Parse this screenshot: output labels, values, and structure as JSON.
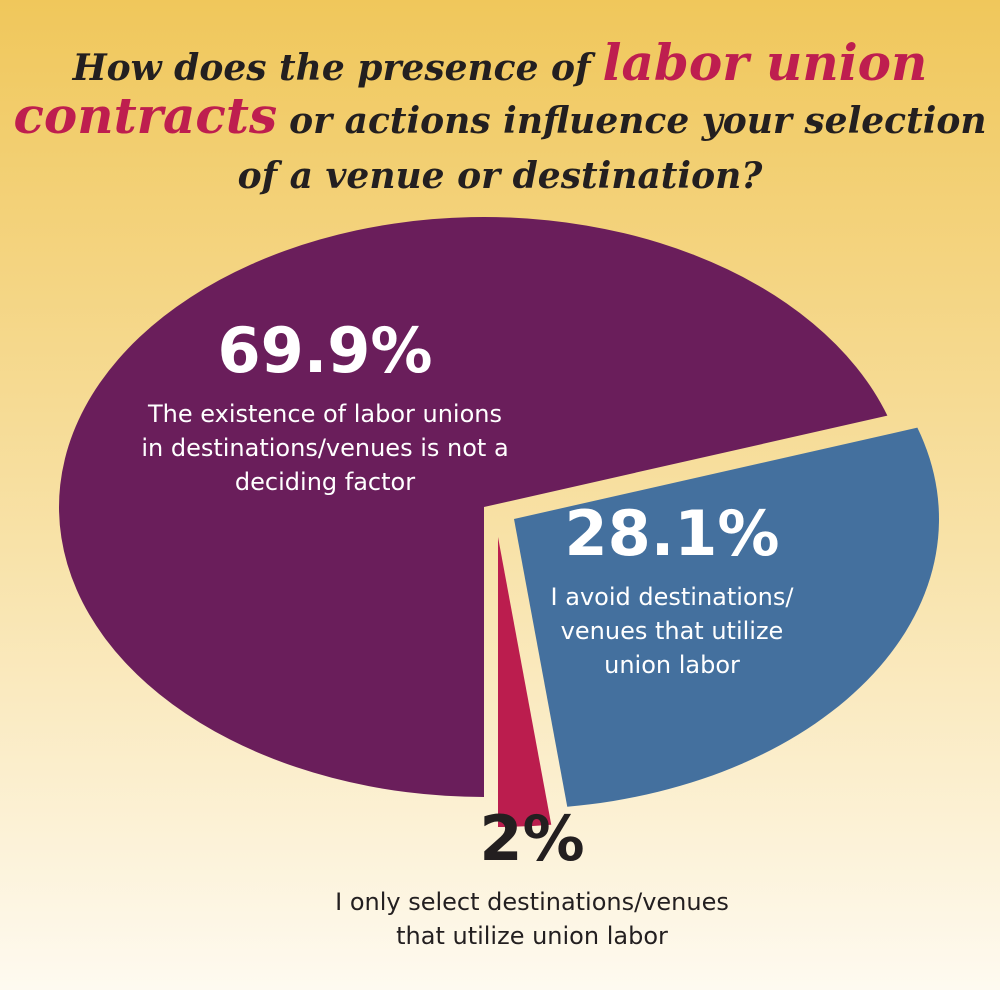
{
  "chart_data": {
    "type": "pie",
    "title": [
      [
        {
          "text": "How does the presence of",
          "color": "#231f20"
        },
        {
          "text": "labor union",
          "color": "#be1e4f"
        }
      ],
      [
        {
          "text": "contracts",
          "color": "#be1e4f"
        },
        {
          "text": "or actions influence your selection",
          "color": "#231f20"
        }
      ],
      [
        {
          "text": "of a venue or destination?",
          "color": "#231f20"
        }
      ]
    ],
    "categories": [
      "The existence of labor unions in destinations/venues is not a deciding factor",
      "I avoid destinations/venues that utilize union labor",
      "I only select destinations/venues that utilize union labor"
    ],
    "values": [
      69.9,
      28.1,
      2
    ],
    "value_labels": [
      "69.9%",
      "28.1%",
      "2%"
    ],
    "colors": [
      "#6a1e5b",
      "#44709e",
      "#bb1d4e"
    ]
  }
}
